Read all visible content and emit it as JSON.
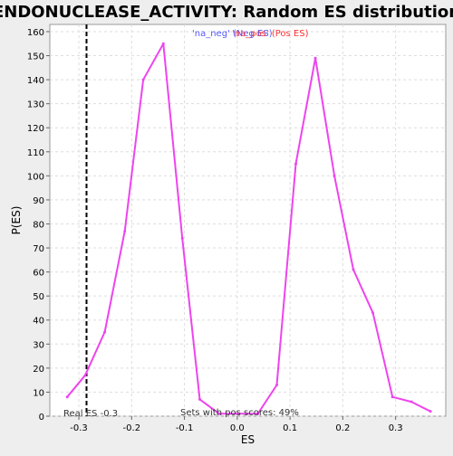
{
  "chart_data": {
    "type": "line",
    "title": "ENDONUCLEASE_ACTIVITY: Random ES distribution",
    "xlabel": "ES",
    "ylabel": "P(ES)",
    "xlim": [
      -0.355,
      0.395
    ],
    "ylim": [
      0,
      163
    ],
    "x_ticks": [
      -0.3,
      -0.2,
      -0.1,
      0.0,
      0.1,
      0.2,
      0.3
    ],
    "x_tick_labels": [
      "-0.3",
      "-0.2",
      "-0.1",
      "0.0",
      "0.1",
      "0.2",
      "0.3"
    ],
    "y_ticks": [
      0,
      10,
      20,
      30,
      40,
      50,
      60,
      70,
      80,
      90,
      100,
      110,
      120,
      130,
      140,
      150,
      160
    ],
    "y_tick_labels": [
      "0",
      "10",
      "20",
      "30",
      "40",
      "50",
      "60",
      "70",
      "80",
      "90",
      "100",
      "110",
      "120",
      "130",
      "140",
      "150",
      "160"
    ],
    "grid": true,
    "legend_position": "top-center",
    "legend": [
      {
        "label": "'na_neg' (Neg ES)",
        "color": "#5555ff"
      },
      {
        "label": "'na_pos' (Pos ES)",
        "color": "#ff3333"
      }
    ],
    "series": [
      {
        "color": "#ee44ee",
        "x": [
          -0.322,
          -0.288,
          -0.251,
          -0.213,
          -0.178,
          -0.14,
          -0.104,
          -0.071,
          -0.034,
          0.003,
          0.039,
          0.075,
          0.111,
          0.148,
          0.184,
          0.22,
          0.257,
          0.294,
          0.33,
          0.366
        ],
        "y": [
          8,
          17,
          35,
          77,
          140,
          155,
          74,
          7,
          1,
          1,
          1,
          13,
          105,
          149,
          100,
          61,
          43,
          8,
          6,
          2
        ]
      }
    ],
    "reference_line": {
      "x": -0.2855,
      "style": "dashed",
      "color": "#000000"
    },
    "annotations": {
      "real_es": "Real ES -0.3",
      "pos_scores": "Sets with pos scores: 49%"
    }
  }
}
